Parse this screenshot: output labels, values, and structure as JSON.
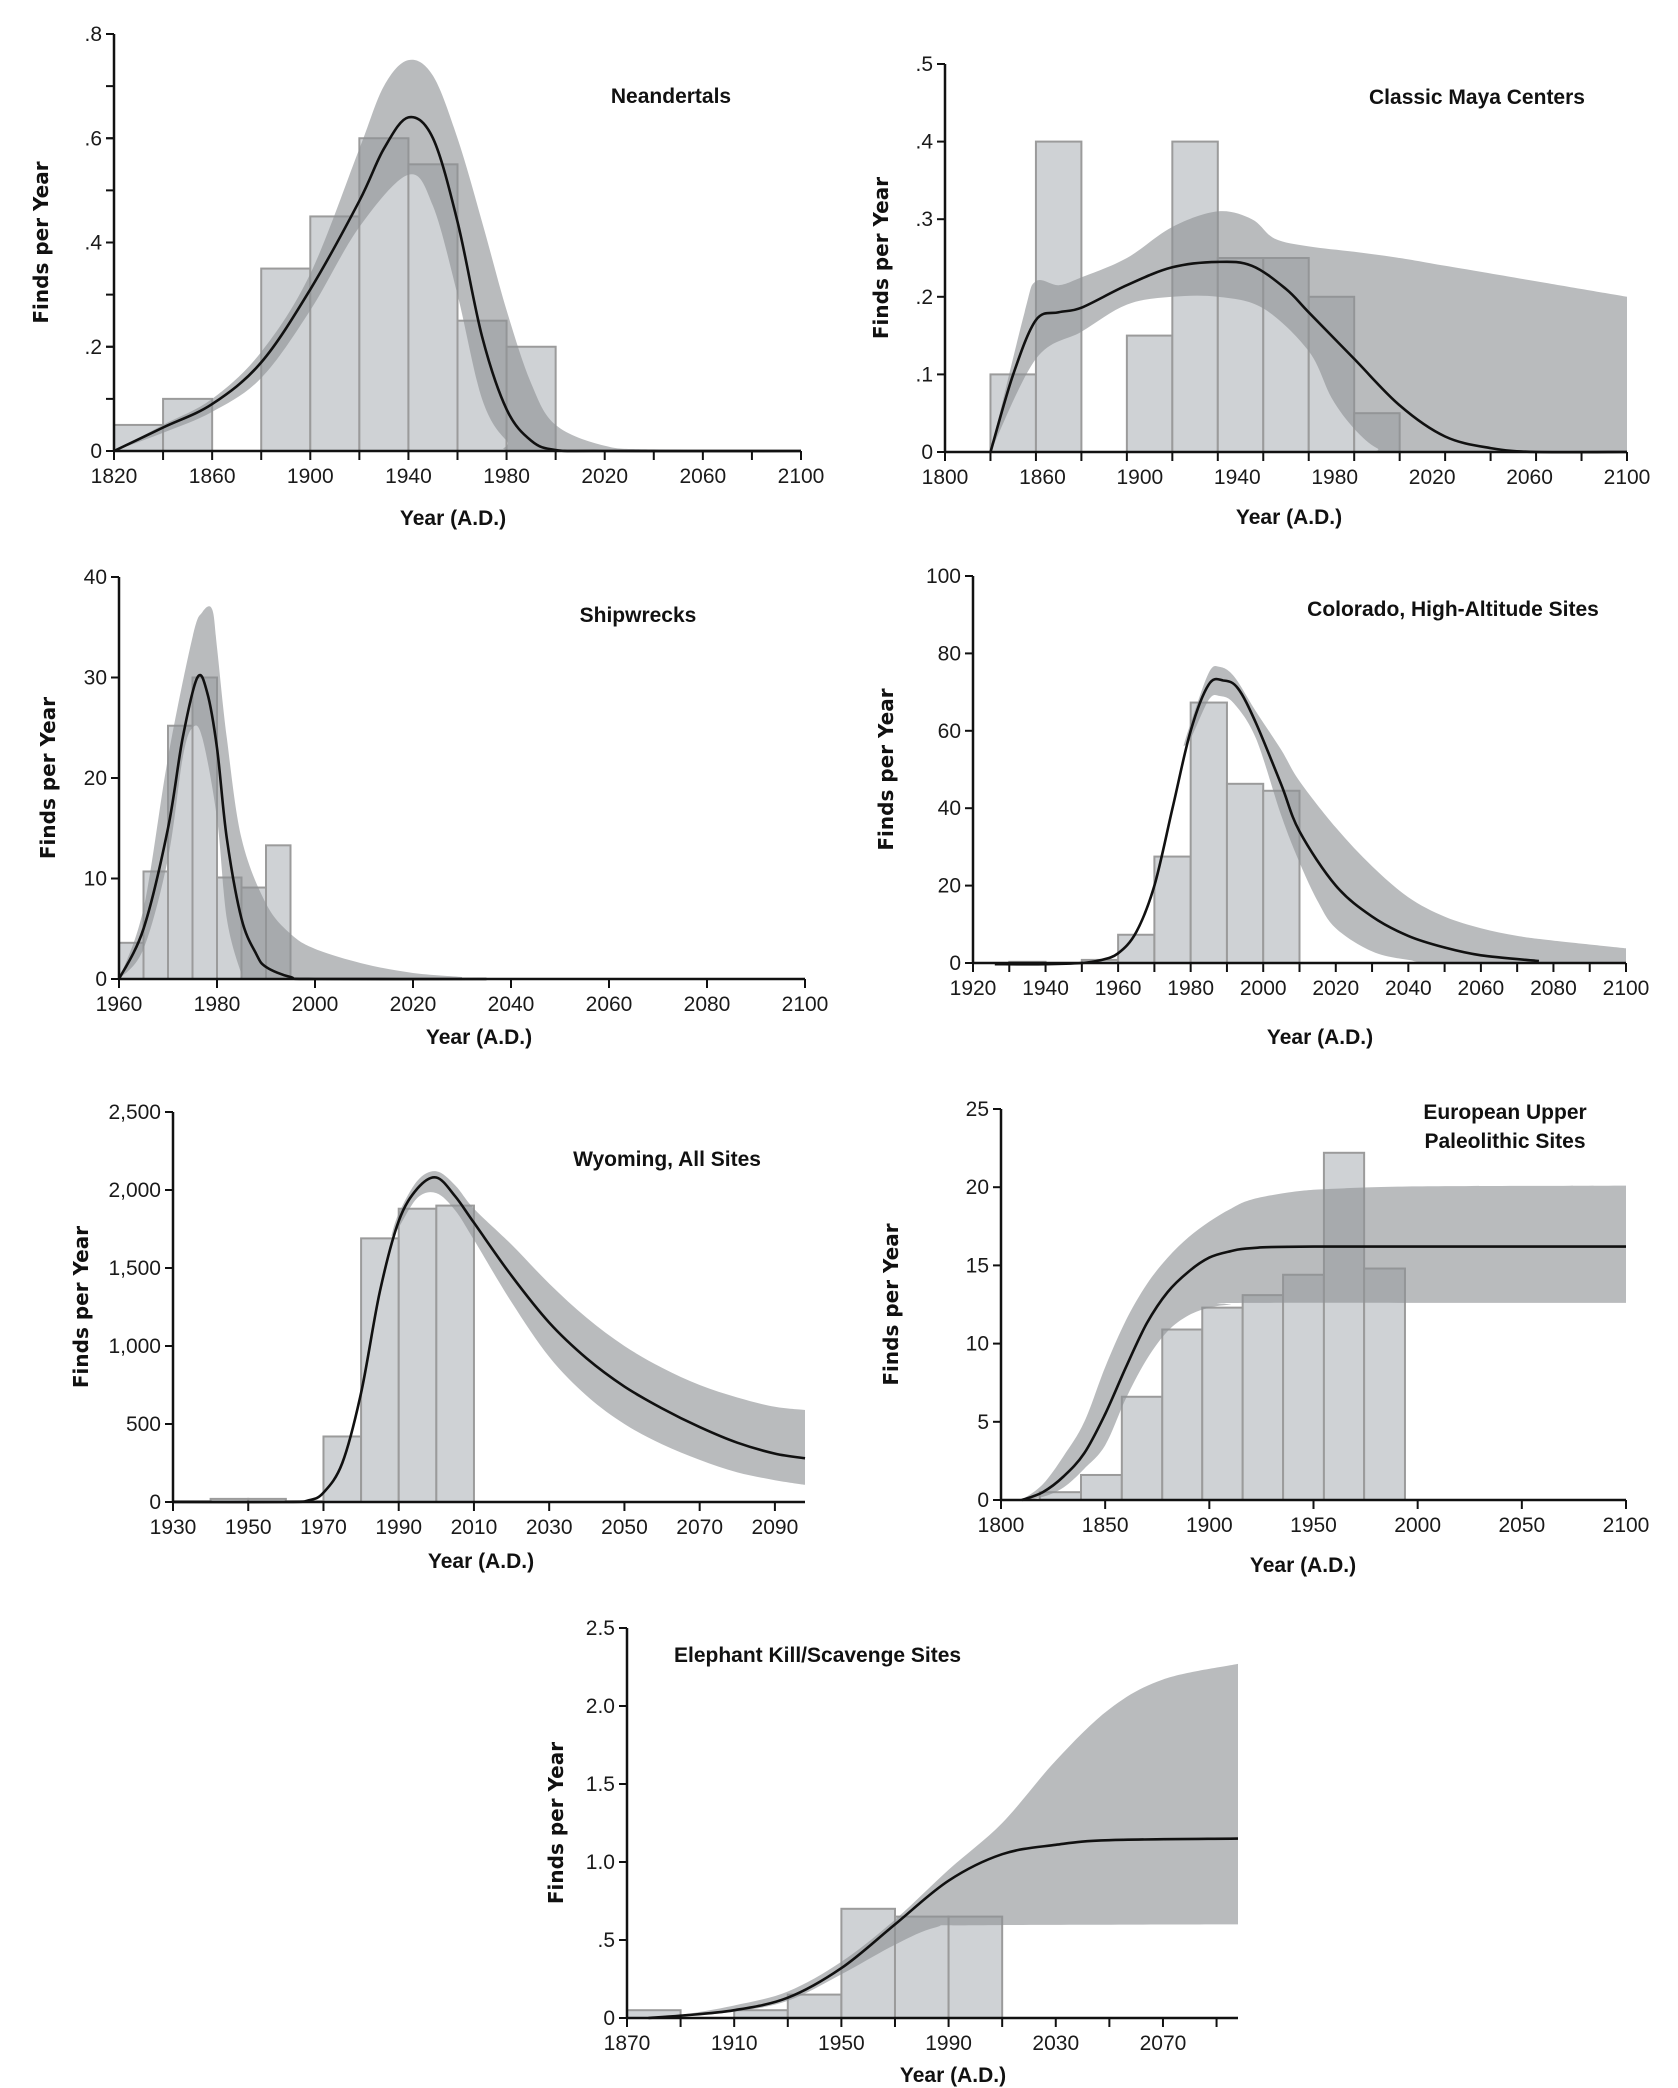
{
  "colors": {
    "bar_fill": "#cfd2d5",
    "bar_stroke": "#9b9b9b",
    "band_fill": "#8e9194",
    "curve": "#111111",
    "axis": "#111111"
  },
  "chart_data": [
    {
      "type": "bar+line",
      "title": [
        "Neandertals"
      ],
      "xlabel": "Year (A.D.)",
      "ylabel": "Finds per Year",
      "xlim": [
        1820,
        2100
      ],
      "ylim": [
        0,
        0.8
      ],
      "x_tick_labels": [
        "1820",
        "1860",
        "1900",
        "1940",
        "1980",
        "2020",
        "2060",
        "2100"
      ],
      "y_ticks": [
        0,
        0.2,
        0.4,
        0.6,
        0.8
      ],
      "y_tick_labels": [
        "0",
        ".2",
        ".4",
        ".6",
        ".8"
      ],
      "bars": [
        [
          1820,
          1840,
          0.05
        ],
        [
          1840,
          1860,
          0.1
        ],
        [
          1880,
          1900,
          0.35
        ],
        [
          1900,
          1920,
          0.45
        ],
        [
          1920,
          1940,
          0.6
        ],
        [
          1940,
          1960,
          0.55
        ],
        [
          1960,
          1980,
          0.25
        ],
        [
          1980,
          2000,
          0.2
        ]
      ],
      "curve": {
        "x": [
          1820,
          1840,
          1860,
          1880,
          1900,
          1920,
          1930,
          1940,
          1950,
          1960,
          1970,
          1980,
          1990,
          2000,
          2020,
          2100
        ],
        "y": [
          0,
          0.045,
          0.09,
          0.17,
          0.31,
          0.48,
          0.58,
          0.64,
          0.6,
          0.44,
          0.22,
          0.08,
          0.02,
          0.002,
          0,
          0
        ]
      },
      "band_upper": {
        "x": [
          1820,
          1840,
          1860,
          1880,
          1900,
          1920,
          1930,
          1940,
          1950,
          1960,
          1970,
          1980,
          1990,
          2000,
          2020,
          2040,
          2100
        ],
        "y": [
          0,
          0.05,
          0.1,
          0.19,
          0.34,
          0.58,
          0.7,
          0.75,
          0.72,
          0.6,
          0.44,
          0.27,
          0.13,
          0.05,
          0.01,
          0.003,
          0
        ]
      },
      "band_lower": {
        "x": [
          1820,
          1840,
          1860,
          1880,
          1900,
          1920,
          1940,
          1950,
          1960,
          1970,
          1980,
          1990,
          2100
        ],
        "y": [
          0,
          0.035,
          0.075,
          0.14,
          0.27,
          0.43,
          0.53,
          0.47,
          0.3,
          0.1,
          0.02,
          0,
          0
        ]
      }
    },
    {
      "type": "bar+line",
      "title": [
        "Classic Maya Centers"
      ],
      "xlabel": "Year (A.D.)",
      "ylabel": "Finds per Year",
      "xlim": [
        1800,
        2100
      ],
      "ylim": [
        0,
        0.5
      ],
      "x_tick_labels": [
        "1800",
        "1860",
        "1900",
        "1940",
        "1980",
        "2020",
        "2060",
        "2100"
      ],
      "y_ticks": [
        0,
        0.1,
        0.2,
        0.3,
        0.4,
        0.5
      ],
      "y_tick_labels": [
        "0",
        ".1",
        ".2",
        ".3",
        ".4",
        ".5"
      ],
      "bars": [
        [
          1820,
          1840,
          0.1
        ],
        [
          1840,
          1860,
          0.4
        ],
        [
          1880,
          1900,
          0.15
        ],
        [
          1900,
          1920,
          0.4
        ],
        [
          1920,
          1940,
          0.25
        ],
        [
          1940,
          1960,
          0.25
        ],
        [
          1960,
          1980,
          0.2
        ],
        [
          1980,
          2000,
          0.05
        ]
      ],
      "curve": {
        "x": [
          1820,
          1830,
          1840,
          1850,
          1860,
          1880,
          1900,
          1920,
          1935,
          1950,
          1960,
          1980,
          2000,
          2020,
          2040,
          2060,
          2100
        ],
        "y": [
          0,
          0.1,
          0.17,
          0.18,
          0.186,
          0.215,
          0.238,
          0.245,
          0.24,
          0.21,
          0.18,
          0.12,
          0.06,
          0.02,
          0.005,
          0,
          0
        ]
      },
      "band_upper": {
        "x": [
          1820,
          1835,
          1840,
          1850,
          1860,
          1880,
          1900,
          1920,
          1935,
          1945,
          1960,
          1980,
          2000,
          2020,
          2060,
          2100
        ],
        "y": [
          0,
          0.18,
          0.22,
          0.215,
          0.225,
          0.25,
          0.29,
          0.31,
          0.3,
          0.275,
          0.265,
          0.258,
          0.25,
          0.24,
          0.22,
          0.2
        ]
      },
      "band_lower": {
        "x": [
          1820,
          1840,
          1860,
          1880,
          1900,
          1920,
          1940,
          1960,
          1970,
          1980,
          1990,
          2000,
          2100
        ],
        "y": [
          0,
          0.12,
          0.155,
          0.19,
          0.2,
          0.2,
          0.185,
          0.13,
          0.07,
          0.03,
          0.005,
          0,
          0
        ]
      }
    },
    {
      "type": "bar+line",
      "title": [
        "Shipwrecks"
      ],
      "xlabel": "Year (A.D.)",
      "ylabel": "Finds per Year",
      "xlim": [
        1960,
        2100
      ],
      "ylim": [
        0,
        40
      ],
      "x_tick_labels": [
        "1960",
        "1980",
        "2000",
        "2020",
        "2040",
        "2060",
        "2080",
        "2100"
      ],
      "y_ticks": [
        0,
        10,
        20,
        30,
        40
      ],
      "y_tick_labels": [
        "0",
        "10",
        "20",
        "30",
        "40"
      ],
      "bars": [
        [
          1960,
          1965,
          3.6
        ],
        [
          1965,
          1970,
          10.7
        ],
        [
          1970,
          1975,
          25.2
        ],
        [
          1975,
          1980,
          30
        ],
        [
          1980,
          1985,
          10.1
        ],
        [
          1985,
          1990,
          9.1
        ],
        [
          1990,
          1995,
          13.3
        ]
      ],
      "curve": {
        "x": [
          1960,
          1965,
          1970,
          1973,
          1976,
          1978,
          1980,
          1982,
          1985,
          1988,
          1990,
          1995,
          2000,
          2035
        ],
        "y": [
          0,
          5,
          15,
          24,
          30,
          28.5,
          23,
          14,
          6,
          2.5,
          1.2,
          0.2,
          0,
          0
        ]
      },
      "band_upper": {
        "x": [
          1960,
          1965,
          1970,
          1975,
          1977,
          1979,
          1980,
          1982,
          1985,
          1990,
          1995,
          2000,
          2010,
          2020,
          2030
        ],
        "y": [
          0,
          7,
          22,
          34,
          36.5,
          36.8,
          33,
          24,
          14,
          7.5,
          4.5,
          3,
          1.5,
          0.6,
          0.2
        ]
      },
      "band_lower": {
        "x": [
          1960,
          1965,
          1970,
          1973,
          1975,
          1977,
          1980,
          1982,
          1985,
          1986,
          2030
        ],
        "y": [
          0,
          3,
          12,
          22,
          25,
          24,
          16,
          6,
          0.5,
          0,
          0
        ]
      }
    },
    {
      "type": "bar+line",
      "title": [
        "Colorado, High-Altitude Sites"
      ],
      "xlabel": "Year (A.D.)",
      "ylabel": "Finds per Year",
      "xlim": [
        1920,
        2100
      ],
      "ylim": [
        0,
        100
      ],
      "x_tick_labels": [
        "1920",
        "1940",
        "1960",
        "1980",
        "2000",
        "2020",
        "2040",
        "2060",
        "2080",
        "2100"
      ],
      "y_ticks": [
        0,
        20,
        40,
        60,
        80,
        100
      ],
      "y_tick_labels": [
        "0",
        "20",
        "40",
        "60",
        "80",
        "100"
      ],
      "bars": [
        [
          1930,
          1940,
          0.3
        ],
        [
          1950,
          1960,
          0.8
        ],
        [
          1960,
          1970,
          7.3
        ],
        [
          1970,
          1980,
          27.5
        ],
        [
          1980,
          1990,
          67.3
        ],
        [
          1990,
          2000,
          46.3
        ],
        [
          2000,
          2010,
          44.5
        ]
      ],
      "curve": {
        "x": [
          1926,
          1940,
          1950,
          1955,
          1960,
          1965,
          1970,
          1975,
          1980,
          1985,
          1989,
          1993,
          1998,
          2005,
          2010,
          2020,
          2030,
          2040,
          2050,
          2060,
          2076
        ],
        "y": [
          -0.3,
          -0.3,
          0,
          0.7,
          2.5,
          8,
          20,
          40,
          60,
          72,
          73,
          71,
          62,
          46,
          34,
          20,
          12,
          7,
          4,
          2,
          0.5
        ]
      },
      "band_upper": {
        "x": [
          1978,
          1980,
          1985,
          1988,
          1992,
          1998,
          2005,
          2010,
          2020,
          2030,
          2040,
          2050,
          2060,
          2070,
          2080,
          2100
        ],
        "y": [
          56,
          62,
          75,
          76.5,
          74,
          65,
          55,
          47,
          35,
          25,
          17,
          12,
          9,
          7,
          5.8,
          3.8
        ]
      },
      "band_lower": {
        "x": [
          1978,
          1980,
          1985,
          1988,
          1992,
          1998,
          2005,
          2010,
          2015,
          2020,
          2030,
          2040,
          2050,
          2100
        ],
        "y": [
          56,
          58,
          68,
          69,
          67,
          58,
          38,
          26,
          16,
          9,
          3,
          0.8,
          0,
          0
        ]
      }
    },
    {
      "type": "bar+line",
      "title": [
        "Wyoming, All Sites"
      ],
      "xlabel": "Year (A.D.)",
      "ylabel": "Finds per Year",
      "xlim": [
        1930,
        2098
      ],
      "ylim": [
        0,
        2500
      ],
      "x_tick_labels": [
        "1930",
        "1950",
        "1970",
        "1990",
        "2010",
        "2030",
        "2050",
        "2070",
        "2090"
      ],
      "y_ticks": [
        0,
        500,
        1000,
        1500,
        2000,
        2500
      ],
      "y_tick_labels": [
        "0",
        "500",
        "1,000",
        "1,500",
        "2,000",
        "2,500"
      ],
      "bars": [
        [
          1930,
          1940,
          5
        ],
        [
          1940,
          1950,
          20
        ],
        [
          1950,
          1960,
          20
        ],
        [
          1960,
          1970,
          5
        ],
        [
          1970,
          1980,
          420
        ],
        [
          1980,
          1990,
          1690
        ],
        [
          1990,
          2000,
          1880
        ],
        [
          2000,
          2010,
          1900
        ]
      ],
      "curve": {
        "x": [
          1930,
          1960,
          1966,
          1970,
          1975,
          1980,
          1985,
          1990,
          1995,
          2000,
          2005,
          2010,
          2020,
          2030,
          2040,
          2050,
          2060,
          2070,
          2080,
          2090,
          2098
        ],
        "y": [
          0,
          0,
          10,
          60,
          250,
          700,
          1350,
          1800,
          2010,
          2080,
          1960,
          1790,
          1450,
          1150,
          920,
          740,
          600,
          480,
          380,
          310,
          280
        ]
      },
      "band_upper": {
        "x": [
          1988,
          1990,
          1995,
          2000,
          2005,
          2010,
          2020,
          2030,
          2040,
          2050,
          2060,
          2070,
          2080,
          2090,
          2098
        ],
        "y": [
          1700,
          1850,
          2060,
          2120,
          2030,
          1880,
          1650,
          1400,
          1180,
          1000,
          860,
          750,
          670,
          610,
          590
        ]
      },
      "band_lower": {
        "x": [
          1988,
          1990,
          1995,
          2000,
          2005,
          2010,
          2020,
          2030,
          2040,
          2050,
          2060,
          2070,
          2080,
          2090,
          2098
        ],
        "y": [
          1700,
          1760,
          1950,
          1980,
          1870,
          1680,
          1280,
          930,
          680,
          500,
          370,
          270,
          190,
          140,
          110
        ]
      }
    },
    {
      "type": "bar+line",
      "title": [
        "European Upper",
        "Paleolithic Sites"
      ],
      "xlabel": "Year (A.D.)",
      "ylabel": "Finds per Year",
      "xlim": [
        1800,
        2100
      ],
      "ylim": [
        0,
        25
      ],
      "x_tick_labels": [
        "1800",
        "1850",
        "1900",
        "1950",
        "2000",
        "2050",
        "2100"
      ],
      "y_ticks": [
        0,
        5,
        10,
        15,
        20,
        25
      ],
      "y_tick_labels": [
        "0",
        "5",
        "10",
        "15",
        "20",
        "25"
      ],
      "bars": [
        [
          1818.6,
          1838.4,
          0.5
        ],
        [
          1838.4,
          1858,
          1.6
        ],
        [
          1858,
          1877.4,
          6.6
        ],
        [
          1877.4,
          1896.6,
          10.9
        ],
        [
          1896.6,
          1916,
          12.3
        ],
        [
          1916,
          1935.4,
          13.1
        ],
        [
          1935.4,
          1955,
          14.4
        ],
        [
          1955,
          1974.3,
          22.2
        ],
        [
          1974.3,
          1993.9,
          14.8
        ]
      ],
      "curve": {
        "x": [
          1810,
          1820,
          1830,
          1840,
          1850,
          1860,
          1870,
          1880,
          1890,
          1900,
          1910,
          1920,
          1950,
          2100
        ],
        "y": [
          0,
          0.5,
          1.5,
          3,
          5.5,
          8.5,
          11.3,
          13.3,
          14.6,
          15.5,
          15.9,
          16.1,
          16.2,
          16.2
        ]
      },
      "band_upper": {
        "x": [
          1810,
          1820,
          1830,
          1840,
          1850,
          1860,
          1870,
          1880,
          1890,
          1900,
          1910,
          1920,
          1940,
          1960,
          2000,
          2100
        ],
        "y": [
          0,
          1,
          2.8,
          5,
          8.5,
          11.5,
          13.8,
          15.5,
          16.8,
          17.8,
          18.6,
          19.2,
          19.7,
          19.9,
          20.05,
          20.1
        ]
      },
      "band_lower": {
        "x": [
          1810,
          1820,
          1830,
          1840,
          1850,
          1860,
          1870,
          1880,
          1890,
          1900,
          1910,
          1920,
          2100
        ],
        "y": [
          0,
          0.2,
          0.8,
          2,
          3.5,
          6.5,
          9,
          10.8,
          11.8,
          12.3,
          12.5,
          12.6,
          12.6
        ]
      }
    },
    {
      "type": "bar+line",
      "title": [
        "Elephant Kill/Scavenge Sites"
      ],
      "xlabel": "Year (A.D.)",
      "ylabel": "Finds per Year",
      "xlim": [
        1870,
        2098
      ],
      "ylim": [
        0,
        2.5
      ],
      "x_tick_labels": [
        "1870",
        "1910",
        "1950",
        "1990",
        "2030",
        "2070"
      ],
      "y_ticks": [
        0,
        0.5,
        1.0,
        1.5,
        2.0,
        2.5
      ],
      "y_tick_labels": [
        "0",
        ".5",
        "1.0",
        "1.5",
        "2.0",
        "2.5"
      ],
      "bars": [
        [
          1870,
          1890,
          0.05
        ],
        [
          1910,
          1930,
          0.05
        ],
        [
          1930,
          1950,
          0.15
        ],
        [
          1950,
          1970,
          0.7
        ],
        [
          1970,
          1990,
          0.65
        ],
        [
          1990,
          2010,
          0.65
        ]
      ],
      "curve": {
        "x": [
          1878,
          1890,
          1910,
          1930,
          1950,
          1970,
          1990,
          2010,
          2030,
          2050,
          2098
        ],
        "y": [
          0,
          0.015,
          0.05,
          0.13,
          0.32,
          0.6,
          0.88,
          1.05,
          1.11,
          1.14,
          1.15
        ]
      },
      "band_upper": {
        "x": [
          1878,
          1890,
          1910,
          1930,
          1950,
          1970,
          1990,
          2010,
          2030,
          2050,
          2070,
          2098
        ],
        "y": [
          0,
          0.02,
          0.08,
          0.17,
          0.36,
          0.63,
          0.95,
          1.25,
          1.65,
          1.98,
          2.17,
          2.27
        ]
      },
      "band_lower": {
        "x": [
          1878,
          1890,
          1910,
          1930,
          1950,
          1970,
          1985,
          2000,
          2098
        ],
        "y": [
          0,
          0.01,
          0.04,
          0.11,
          0.28,
          0.47,
          0.58,
          0.595,
          0.6
        ]
      }
    }
  ]
}
